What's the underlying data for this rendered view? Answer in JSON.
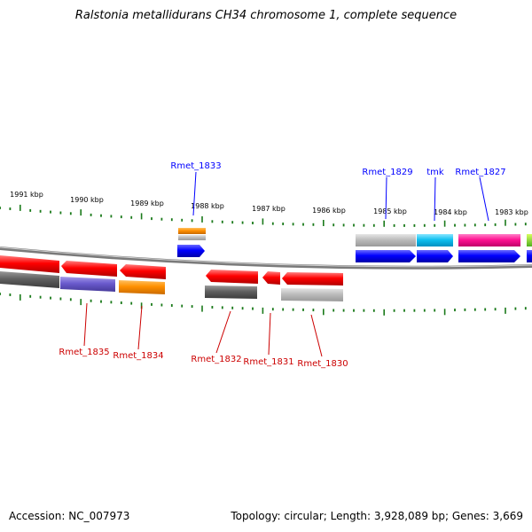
{
  "title": "Ralstonia metallidurans CH34 chromosome 1, complete sequence",
  "footer": {
    "accession": "Accession: NC_007973",
    "summary": "Topology: circular; Length: 3,928,089 bp; Genes: 3,669"
  },
  "ticks": [
    "1991 kbp",
    "1990 kbp",
    "1989 kbp",
    "1988 kbp",
    "1987 kbp",
    "1986 kbp",
    "1985 kbp",
    "1984 kbp",
    "1983 kbp"
  ],
  "genes_forward": [
    {
      "name": "Rmet_1833",
      "color": "#0000ff"
    },
    {
      "name": "Rmet_1829",
      "color": "#0000ff"
    },
    {
      "name": "tmk",
      "color": "#0000ff"
    },
    {
      "name": "Rmet_1827",
      "color": "#0000ff"
    }
  ],
  "genes_reverse": [
    {
      "name": "Rmet_1835",
      "color": "#cc0000"
    },
    {
      "name": "Rmet_1834",
      "color": "#cc0000"
    },
    {
      "name": "Rmet_1832",
      "color": "#cc0000"
    },
    {
      "name": "Rmet_1831",
      "color": "#cc0000"
    },
    {
      "name": "Rmet_1830",
      "color": "#cc0000"
    }
  ],
  "colors": {
    "forward_label": "#0000ff",
    "reverse_label": "#cc0000",
    "tick": "#1a7a1a",
    "backbone": "#7a7a7a"
  }
}
